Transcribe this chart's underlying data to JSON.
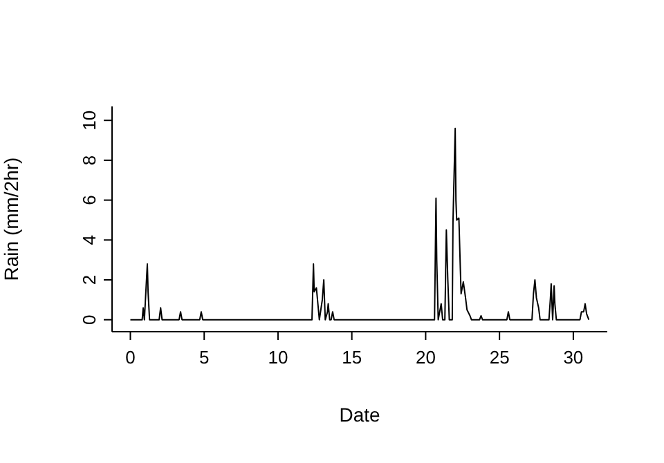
{
  "chart_data": {
    "type": "line",
    "xlabel": "Date",
    "ylabel": "Rain (mm/2hr)",
    "color": "#000000",
    "marker": "none",
    "grid": false,
    "x": [
      0,
      0.8,
      0.87,
      0.95,
      1.05,
      1.15,
      1.2,
      1.3,
      1.95,
      2.05,
      2.15,
      3.3,
      3.4,
      3.5,
      4.7,
      4.8,
      4.9,
      12.3,
      12.4,
      12.45,
      12.6,
      12.7,
      12.8,
      12.9,
      13.0,
      13.1,
      13.2,
      13.35,
      13.4,
      13.5,
      13.6,
      13.7,
      13.8,
      20.6,
      20.7,
      20.75,
      20.85,
      20.95,
      21.05,
      21.15,
      21.3,
      21.35,
      21.4,
      21.5,
      21.6,
      21.8,
      21.85,
      22.0,
      22.05,
      22.1,
      22.25,
      22.35,
      22.4,
      22.55,
      22.7,
      22.8,
      23.0,
      23.1,
      23.65,
      23.75,
      23.85,
      25.5,
      25.6,
      25.7,
      27.2,
      27.3,
      27.4,
      27.5,
      27.65,
      27.75,
      28.35,
      28.45,
      28.5,
      28.6,
      28.7,
      28.75,
      28.85,
      30.45,
      30.55,
      30.7,
      30.8,
      30.9,
      31.05
    ],
    "values": [
      0,
      0,
      0.6,
      0,
      1.4,
      2.8,
      1.4,
      0,
      0,
      0.6,
      0,
      0,
      0.4,
      0,
      0,
      0.4,
      0,
      0,
      2.8,
      1.4,
      1.6,
      0.8,
      0,
      0.5,
      1.0,
      2.0,
      0,
      0.4,
      0.8,
      0,
      0,
      0.4,
      0,
      0,
      6.1,
      3.0,
      0,
      0.4,
      0.8,
      0,
      0,
      2.2,
      4.5,
      2.0,
      0,
      0,
      4.9,
      9.6,
      6.0,
      5.0,
      5.1,
      2.5,
      1.3,
      1.9,
      1.1,
      0.5,
      0.2,
      0,
      0,
      0.2,
      0,
      0,
      0.4,
      0,
      0,
      1.3,
      2.0,
      1.1,
      0.6,
      0,
      0,
      1.1,
      1.8,
      0,
      1.7,
      0.8,
      0,
      0,
      0.4,
      0.4,
      0.8,
      0.3,
      0
    ],
    "xlim": [
      -1.24,
      32.3
    ],
    "ylim": [
      -0.6,
      10.7
    ],
    "xticks": [
      0,
      5,
      10,
      15,
      20,
      25,
      30
    ],
    "yticks": [
      0,
      2,
      4,
      6,
      8,
      10
    ]
  }
}
